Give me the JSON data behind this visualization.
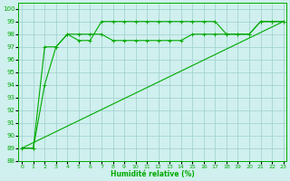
{
  "xlabel": "Humidité relative (%)",
  "xlim": [
    -0.3,
    23.3
  ],
  "ylim": [
    88,
    100.5
  ],
  "yticks": [
    88,
    89,
    90,
    91,
    92,
    93,
    94,
    95,
    96,
    97,
    98,
    99,
    100
  ],
  "xticks": [
    0,
    1,
    2,
    3,
    4,
    5,
    6,
    7,
    8,
    9,
    10,
    11,
    12,
    13,
    14,
    15,
    16,
    17,
    18,
    19,
    20,
    21,
    22,
    23
  ],
  "bg_color": "#cff0ee",
  "grid_color": "#9ecece",
  "line_color": "#00aa00",
  "line1_x": [
    0,
    1,
    2,
    3,
    4,
    5,
    6,
    7,
    8,
    9,
    10,
    11,
    12,
    13,
    14,
    15,
    16,
    17,
    18,
    19,
    20,
    21,
    22,
    23
  ],
  "line1_y": [
    89,
    89,
    94,
    97,
    98,
    97.5,
    97.5,
    99,
    99,
    99,
    99,
    99,
    99,
    99,
    99,
    99,
    99,
    99,
    98,
    98,
    98,
    99,
    99,
    99
  ],
  "line2_x": [
    0,
    1,
    2,
    3,
    4,
    5,
    6,
    7,
    8,
    9,
    10,
    11,
    12,
    13,
    14,
    15,
    16,
    17,
    18,
    19,
    20,
    21,
    22,
    23
  ],
  "line2_y": [
    89,
    89,
    97,
    97,
    98,
    98,
    98,
    98,
    97.5,
    97.5,
    97.5,
    97.5,
    97.5,
    97.5,
    97.5,
    98,
    98,
    98,
    98,
    98,
    98,
    99,
    99,
    99
  ],
  "line3_x": [
    0,
    23
  ],
  "line3_y": [
    89,
    99
  ],
  "markersize": 2.5,
  "linewidth": 0.8
}
